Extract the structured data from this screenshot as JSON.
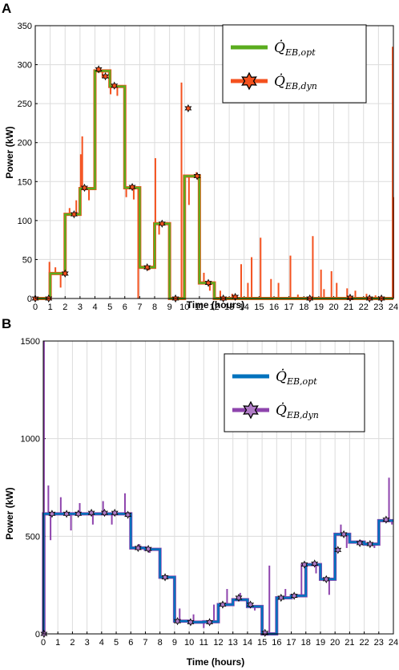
{
  "chart_data": [
    {
      "panel": "A",
      "type": "line",
      "xlabel": "Time (hours)",
      "ylabel": "Power (kW)",
      "xlim": [
        0,
        24
      ],
      "ylim": [
        0,
        350
      ],
      "xticks": [
        0,
        1,
        2,
        3,
        4,
        5,
        6,
        7,
        8,
        9,
        10,
        11,
        12,
        13,
        14,
        15,
        16,
        17,
        18,
        19,
        20,
        21,
        22,
        23,
        24
      ],
      "yticks": [
        0,
        50,
        100,
        150,
        200,
        250,
        300,
        350
      ],
      "grid": true,
      "legend_position": "top-right",
      "colors": {
        "opt": "#5aac1e",
        "dyn": "#f4511e",
        "star_fill": "#f4511e",
        "star_edge": "#000000"
      },
      "series": [
        {
          "name": "Q̇_EB,opt",
          "legend_main": "Q̇",
          "legend_sub": "EB,opt",
          "style": "step",
          "x": [
            0,
            1,
            2,
            3,
            4,
            5,
            6,
            7,
            8,
            9,
            10,
            11,
            12,
            13,
            14,
            15,
            16,
            17,
            18,
            19,
            20,
            21,
            22,
            23,
            24
          ],
          "values": [
            0,
            32,
            108,
            141,
            292,
            272,
            142,
            40,
            96,
            0,
            157,
            20,
            0,
            0,
            0,
            0,
            0,
            0,
            0,
            0,
            0,
            0,
            0,
            0,
            0
          ]
        },
        {
          "name": "Q̇_EB,dyn",
          "legend_main": "Q̇",
          "legend_sub": "EB,dyn",
          "style": "stars",
          "x": [
            0,
            0.9,
            2.0,
            2.6,
            3.3,
            4.25,
            4.7,
            5.3,
            6.5,
            7.5,
            8.5,
            9.4,
            10.25,
            10.85,
            11.6,
            12.6,
            13.4,
            18.4,
            21.1,
            22.4,
            23.2
          ],
          "values": [
            0,
            0,
            32,
            108,
            142,
            294,
            285,
            273,
            143,
            40,
            96,
            0,
            244,
            157,
            20,
            0,
            2,
            0,
            1,
            0,
            0
          ]
        }
      ],
      "dyn_spikes": [
        [
          0.95,
          47
        ],
        [
          1.35,
          40
        ],
        [
          1.7,
          14
        ],
        [
          2.3,
          116
        ],
        [
          2.75,
          126
        ],
        [
          3.05,
          185
        ],
        [
          3.15,
          208
        ],
        [
          3.6,
          126
        ],
        [
          4.05,
          222
        ],
        [
          4.5,
          283
        ],
        [
          5.05,
          262
        ],
        [
          5.5,
          260
        ],
        [
          6.1,
          130
        ],
        [
          6.6,
          127
        ],
        [
          6.9,
          0
        ],
        [
          7.6,
          36
        ],
        [
          8.05,
          180
        ],
        [
          8.3,
          82
        ],
        [
          8.85,
          98
        ],
        [
          9.3,
          0
        ],
        [
          9.8,
          277
        ],
        [
          10.3,
          120
        ],
        [
          10.8,
          162
        ],
        [
          11.3,
          33
        ],
        [
          11.7,
          10
        ],
        [
          12.4,
          10
        ],
        [
          13.2,
          6
        ],
        [
          13.8,
          44
        ],
        [
          14.5,
          53
        ],
        [
          14.25,
          20
        ],
        [
          15.1,
          78
        ],
        [
          15.8,
          25
        ],
        [
          16.3,
          20
        ],
        [
          17.1,
          55
        ],
        [
          17.6,
          5
        ],
        [
          18.6,
          80
        ],
        [
          19.15,
          37
        ],
        [
          19.35,
          12
        ],
        [
          19.85,
          35
        ],
        [
          20.2,
          20
        ],
        [
          20.9,
          13
        ],
        [
          21.45,
          10
        ],
        [
          22.2,
          6
        ],
        [
          22.8,
          4
        ],
        [
          23.95,
          323
        ],
        [
          24,
          130
        ]
      ]
    },
    {
      "panel": "B",
      "type": "line",
      "xlabel": "Time (hours)",
      "ylabel": "Power (kW)",
      "xlim": [
        0,
        24
      ],
      "ylim": [
        0,
        1500
      ],
      "xticks": [
        0,
        1,
        2,
        3,
        4,
        5,
        6,
        7,
        8,
        9,
        10,
        11,
        12,
        13,
        14,
        15,
        16,
        17,
        18,
        19,
        20,
        21,
        22,
        23,
        24
      ],
      "yticks": [
        0,
        500,
        1000,
        1500
      ],
      "grid": true,
      "legend_position": "top-right",
      "colors": {
        "opt": "#0072bd",
        "dyn": "#8e44ad",
        "star_fill": "#b07cc6",
        "star_edge": "#000000"
      },
      "series": [
        {
          "name": "Q̇_EB,opt",
          "legend_main": "Q̇",
          "legend_sub": "EB,opt",
          "style": "step",
          "x": [
            0,
            0.02,
            6,
            7,
            8,
            9,
            10,
            11,
            12,
            13,
            14,
            15,
            16,
            17,
            18,
            19,
            20,
            21,
            22,
            23,
            24
          ],
          "values": [
            0,
            615,
            440,
            433,
            290,
            65,
            60,
            62,
            150,
            175,
            140,
            0,
            185,
            195,
            355,
            280,
            510,
            470,
            460,
            580,
            580
          ]
        },
        {
          "name": "Q̇_EB,dyn",
          "legend_main": "Q̇",
          "legend_sub": "EB,dyn",
          "style": "stars",
          "x": [
            0.05,
            0.6,
            1.6,
            2.4,
            3.3,
            4.2,
            4.9,
            5.8,
            6.5,
            7.2,
            8.35,
            9.2,
            10.1,
            11.4,
            12.3,
            13.4,
            14.2,
            15.2,
            16.3,
            17.2,
            17.9,
            18.6,
            19.4,
            20.2,
            20.6,
            21.7,
            22.4,
            23.5
          ],
          "values": [
            0,
            615,
            615,
            615,
            620,
            620,
            620,
            610,
            440,
            435,
            290,
            65,
            60,
            60,
            150,
            185,
            150,
            5,
            185,
            195,
            355,
            360,
            280,
            430,
            510,
            465,
            460,
            585
          ]
        }
      ],
      "dyn_spikes": [
        [
          0.05,
          1500
        ],
        [
          0.1,
          0
        ],
        [
          0.35,
          760
        ],
        [
          0.5,
          480
        ],
        [
          1.2,
          700
        ],
        [
          1.9,
          530
        ],
        [
          2.5,
          670
        ],
        [
          3.4,
          560
        ],
        [
          4.1,
          680
        ],
        [
          4.7,
          560
        ],
        [
          5.6,
          720
        ],
        [
          6.6,
          460
        ],
        [
          7.3,
          415
        ],
        [
          8.4,
          300
        ],
        [
          9.35,
          130
        ],
        [
          10.3,
          100
        ],
        [
          11.0,
          30
        ],
        [
          11.7,
          150
        ],
        [
          12.6,
          230
        ],
        [
          13.5,
          210
        ],
        [
          14.5,
          120
        ],
        [
          15.5,
          350
        ],
        [
          16.6,
          230
        ],
        [
          17.7,
          360
        ],
        [
          18.7,
          310
        ],
        [
          19.6,
          200
        ],
        [
          20.4,
          560
        ],
        [
          20.8,
          440
        ],
        [
          21.8,
          480
        ],
        [
          22.7,
          440
        ],
        [
          23.7,
          800
        ],
        [
          23.9,
          560
        ]
      ]
    }
  ],
  "panels": [
    {
      "letter": "A",
      "ylabel": "Power (kW)",
      "xlabel": "Time (hours)",
      "yticks": [
        "0",
        "50",
        "100",
        "150",
        "200",
        "250",
        "300",
        "350"
      ],
      "xticks": [
        "0",
        "1",
        "2",
        "3",
        "4",
        "5",
        "6",
        "7",
        "8",
        "9",
        "10",
        "11",
        "12",
        "13",
        "14",
        "15",
        "16",
        "17",
        "18",
        "19",
        "20",
        "21",
        "22",
        "23",
        "24"
      ]
    },
    {
      "letter": "B",
      "ylabel": "Power (kW)",
      "xlabel": "Time (hours)",
      "yticks": [
        "0",
        "500",
        "1000",
        "1500"
      ],
      "xticks": [
        "0",
        "1",
        "2",
        "3",
        "4",
        "5",
        "6",
        "7",
        "8",
        "9",
        "10",
        "11",
        "12",
        "13",
        "14",
        "15",
        "16",
        "17",
        "18",
        "19",
        "20",
        "21",
        "22",
        "23",
        "24"
      ]
    }
  ]
}
